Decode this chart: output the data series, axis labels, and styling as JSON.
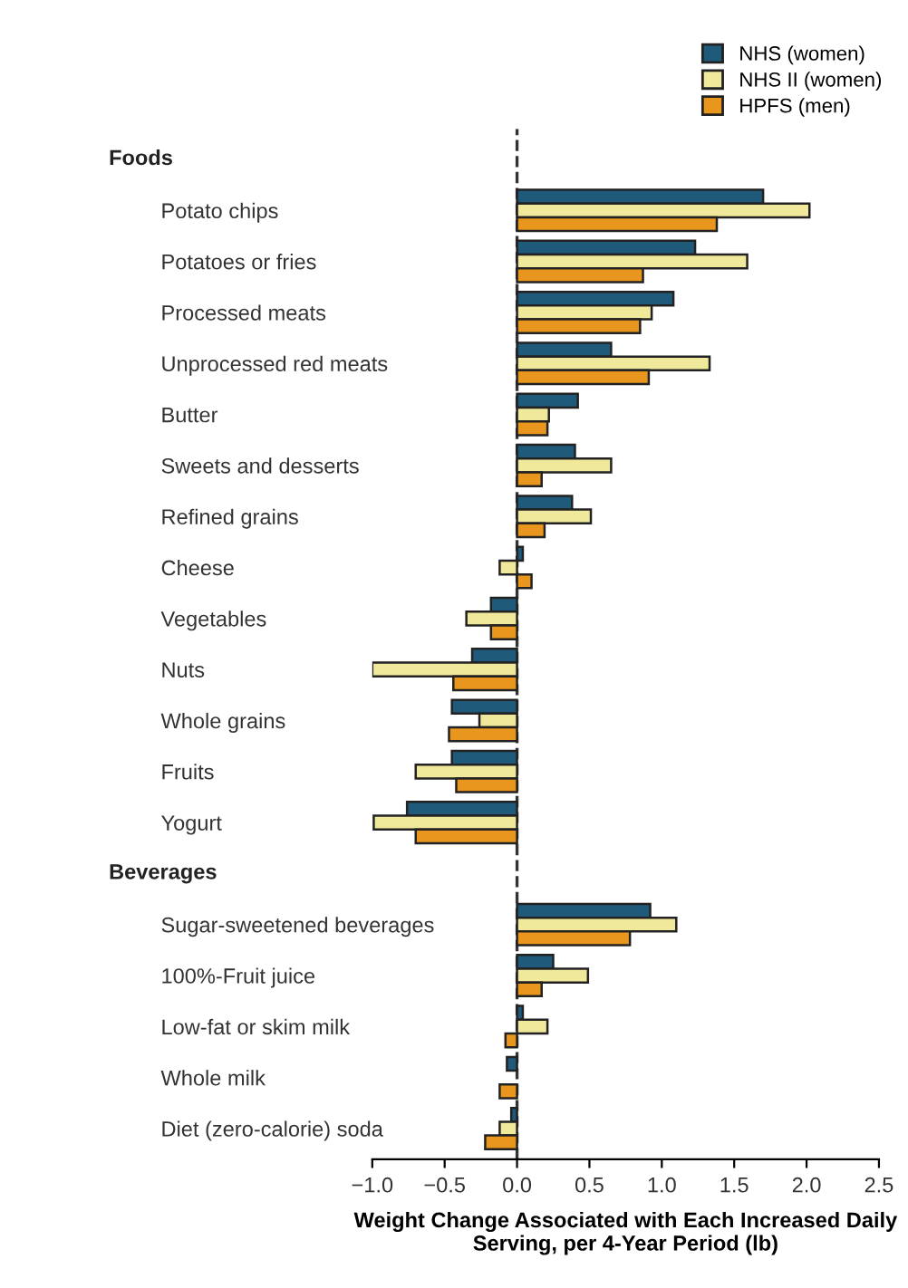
{
  "chart_data": {
    "type": "bar",
    "orientation": "horizontal",
    "xlabel": "Weight Change Associated with Each Increased Daily Serving, per 4-Year Period (lb)",
    "annotations": [
      "Foods",
      "Beverages"
    ],
    "categories": [
      null,
      "Potato chips",
      "Potatoes or fries",
      "Processed meats",
      "Unprocessed red meats",
      "Butter",
      "Sweets and desserts",
      "Refined grains",
      "Cheese",
      "Vegetables",
      "Nuts",
      "Whole grains",
      "Fruits",
      "Yogurt",
      null,
      "Sugar-sweetened beverages",
      "100%-Fruit juice",
      "Low-fat or skim milk",
      "Whole milk",
      "Diet (zero-calorie) soda"
    ],
    "series": [
      {
        "name": "NHS (women)",
        "color": "#1f5a7a",
        "values": [
          null,
          1.7,
          1.23,
          1.08,
          0.65,
          0.42,
          0.4,
          0.38,
          0.04,
          -0.18,
          -0.31,
          -0.45,
          -0.45,
          -0.76,
          null,
          0.92,
          0.25,
          0.04,
          -0.07,
          -0.04
        ]
      },
      {
        "name": "NHS II (women)",
        "color": "#f0e89a",
        "values": [
          null,
          2.02,
          1.59,
          0.93,
          1.33,
          0.22,
          0.65,
          0.51,
          -0.12,
          -0.35,
          -1.0,
          -0.26,
          -0.7,
          -0.99,
          null,
          1.1,
          0.49,
          0.21,
          null,
          -0.12
        ]
      },
      {
        "name": "HPFS (men)",
        "color": "#e8961e",
        "values": [
          null,
          1.38,
          0.87,
          0.85,
          0.91,
          0.21,
          0.17,
          0.19,
          0.1,
          -0.18,
          -0.44,
          -0.47,
          -0.42,
          -0.7,
          null,
          0.78,
          0.17,
          -0.08,
          -0.12,
          -0.22
        ]
      }
    ],
    "xlim": [
      -1.0,
      2.5
    ],
    "xticks": [
      {
        "value": -1.0,
        "label": "−1.0"
      },
      {
        "value": -0.5,
        "label": "−0.5"
      },
      {
        "value": 0.0,
        "label": "0.0"
      },
      {
        "value": 0.5,
        "label": "0.5"
      },
      {
        "value": 1.0,
        "label": "1.0"
      },
      {
        "value": 1.5,
        "label": "1.5"
      },
      {
        "value": 2.0,
        "label": "2.0"
      },
      {
        "value": 2.5,
        "label": "2.5"
      }
    ],
    "ref_lines": [
      {
        "axis": "x",
        "value": 0,
        "line_style": "dashed",
        "color": "#333333"
      }
    ],
    "grid": false,
    "legend": "top right"
  }
}
